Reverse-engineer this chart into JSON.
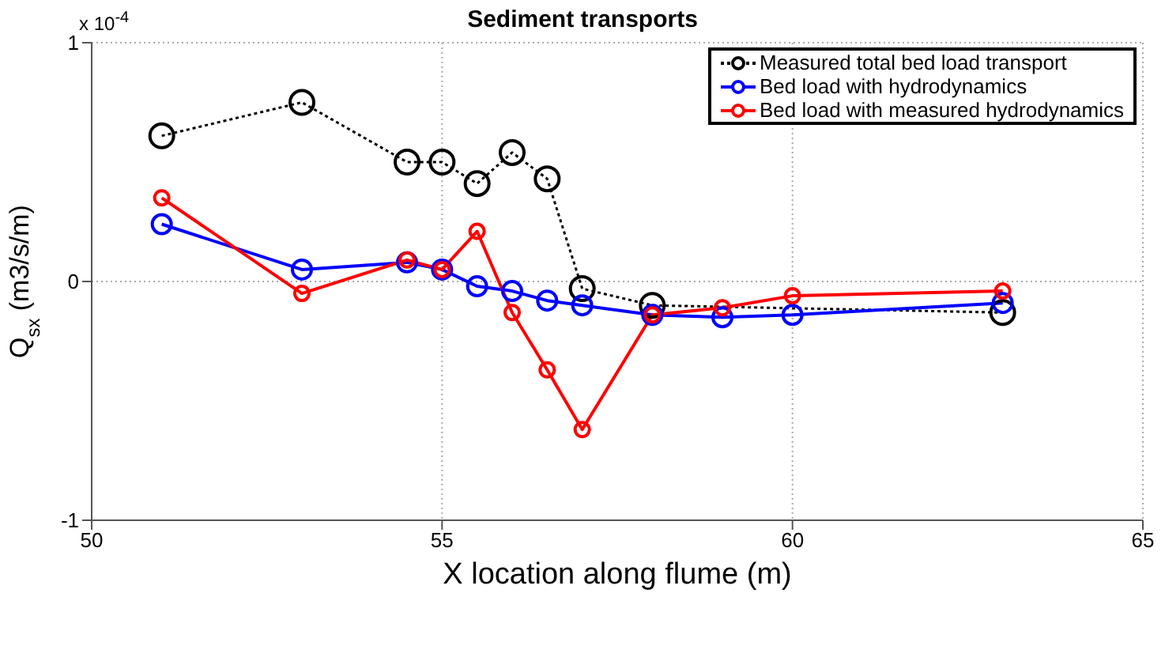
{
  "chart_data": {
    "type": "line",
    "title": "Sediment transports",
    "xlabel": "X location along flume (m)",
    "ylabel": "Q$_{sx}$ (m3/s/m)",
    "annotations": [
      "x 10$^{-4}$"
    ],
    "xlim": [
      50,
      65
    ],
    "xticks": [
      50,
      55,
      60,
      65
    ],
    "ylim": [
      -1,
      1
    ],
    "yticks": [
      -1,
      0,
      1
    ],
    "grid": true,
    "legend": "top right",
    "marker": "circle",
    "series": [
      {
        "name": "Measured total bed load transport",
        "color": "#000000",
        "line_style": "dotted",
        "x": [
          51,
          53,
          54.5,
          55,
          55.5,
          56,
          56.5,
          57,
          58,
          63
        ],
        "values": [
          0.61,
          0.75,
          0.5,
          0.5,
          0.41,
          0.54,
          0.43,
          -0.03,
          -0.1,
          -0.13
        ]
      },
      {
        "name": "Bed load with hydrodynamics",
        "color": "#0000ff",
        "line_style": "solid",
        "x": [
          51,
          53,
          54.5,
          55,
          55.5,
          56,
          56.5,
          57,
          58,
          59,
          60,
          63
        ],
        "values": [
          0.24,
          0.05,
          0.08,
          0.05,
          -0.02,
          -0.04,
          -0.08,
          -0.1,
          -0.14,
          -0.15,
          -0.14,
          -0.09
        ]
      },
      {
        "name": "Bed load with measured hydrodynamics",
        "color": "#ff0000",
        "line_style": "solid",
        "x": [
          51,
          53,
          54.5,
          55,
          55.5,
          56,
          56.5,
          57,
          58,
          59,
          60,
          63
        ],
        "values": [
          0.35,
          -0.05,
          0.09,
          0.05,
          0.21,
          -0.13,
          -0.37,
          -0.62,
          -0.14,
          -0.11,
          -0.06,
          -0.04
        ]
      }
    ]
  }
}
